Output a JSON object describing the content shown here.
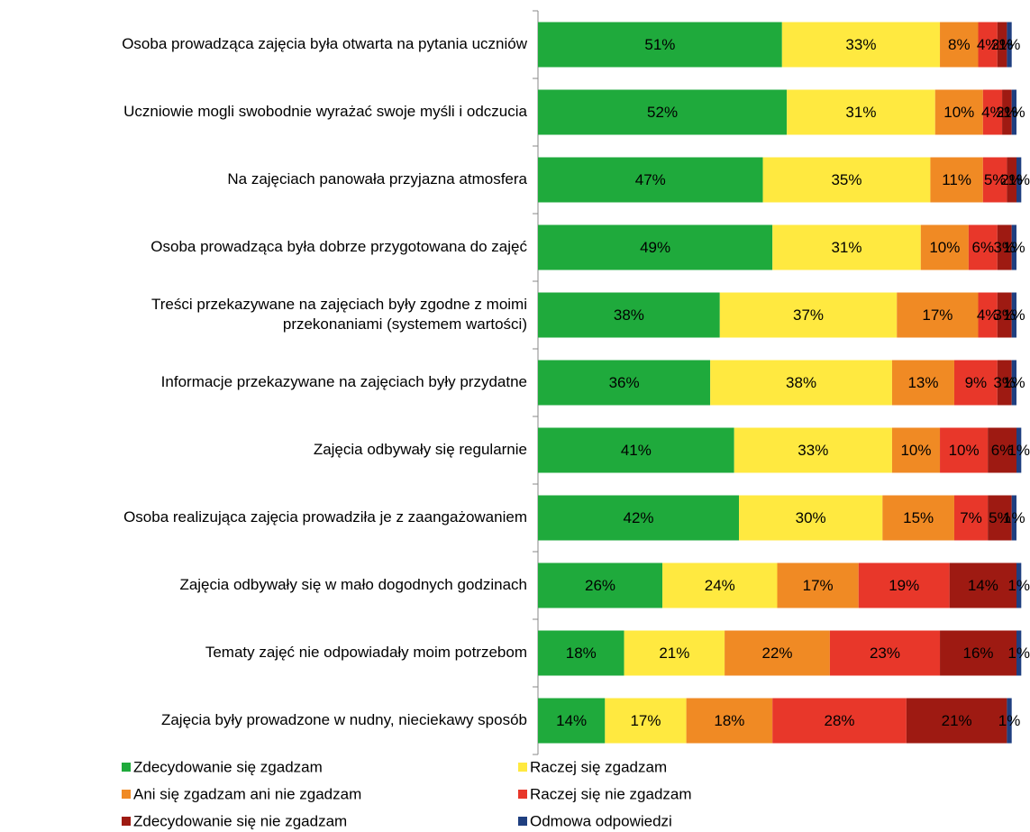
{
  "chart_data": {
    "type": "stacked_barh",
    "categories": [
      "Osoba prowadząca zajęcia była otwarta na pytania uczniów",
      "Uczniowie mogli swobodnie wyrażać swoje myśli i odczucia",
      "Na zajęciach panowała przyjazna atmosfera",
      "Osoba prowadząca była dobrze przygotowana do zajęć",
      [
        "Treści przekazywane na zajęciach były zgodne z moimi",
        "przekonaniami (systemem wartości)"
      ],
      "Informacje przekazywane na zajęciach były przydatne",
      "Zajęcia odbywały się regularnie",
      "Osoba realizująca zajęcia prowadziła je z zaangażowaniem",
      "Zajęcia odbywały się w mało dogodnych godzinach",
      "Tematy zajęć nie odpowiadały moim potrzebom",
      "Zajęcia były prowadzone w nudny, nieciekawy sposób"
    ],
    "xlim": [
      0,
      100
    ],
    "series": [
      {
        "name": "Zdecydowanie się zgadzam",
        "color": "#1faa3c",
        "values": [
          51,
          52,
          47,
          49,
          38,
          36,
          41,
          42,
          26,
          18,
          14
        ],
        "value_labels": [
          "51%",
          "52%",
          "47%",
          "49%",
          "38%",
          "36%",
          "41%",
          "42%",
          "26%",
          "18%",
          "14%"
        ]
      },
      {
        "name": "Raczej się zgadzam",
        "color": "#ffe940",
        "values": [
          33,
          31,
          35,
          31,
          37,
          38,
          33,
          30,
          24,
          21,
          17
        ],
        "value_labels": [
          "33%",
          "31%",
          "35%",
          "31%",
          "37%",
          "38%",
          "33%",
          "30%",
          "24%",
          "21%",
          "17%"
        ]
      },
      {
        "name": "Ani się zgadzam ani nie zgadzam",
        "color": "#f08a24",
        "values": [
          8,
          10,
          11,
          10,
          17,
          13,
          10,
          15,
          17,
          22,
          18
        ],
        "value_labels": [
          "8%",
          "10%",
          "11%",
          "10%",
          "17%",
          "13%",
          "10%",
          "15%",
          "17%",
          "22%",
          "18%"
        ]
      },
      {
        "name": "Raczej się nie zgadzam",
        "color": "#e8372a",
        "values": [
          4,
          4,
          5,
          6,
          4,
          9,
          10,
          7,
          19,
          23,
          28
        ],
        "value_labels": [
          "4%",
          "4%",
          "5%",
          "6%",
          "4%",
          "9%",
          "10%",
          "7%",
          "19%",
          "23%",
          "28%"
        ]
      },
      {
        "name": "Zdecydowanie się nie zgadzam",
        "color": "#9e1a12",
        "values": [
          2,
          2,
          2,
          3,
          3,
          3,
          6,
          5,
          14,
          16,
          21
        ],
        "value_labels": [
          "2%",
          "2%",
          "2%",
          "3%",
          "3%",
          "3%",
          "6%",
          "5%",
          "14%",
          "16%",
          "21%"
        ]
      },
      {
        "name": "Odmowa odpowiedzi",
        "color": "#1f3f80",
        "values": [
          1,
          1,
          1,
          1,
          1,
          1,
          1,
          1,
          1,
          1,
          1
        ],
        "value_labels": [
          "1%",
          "1%",
          "1%",
          "1%",
          "1%",
          "1%",
          "1%",
          "1%",
          "1%",
          "1%",
          "1%"
        ]
      }
    ],
    "legend": "bottom"
  }
}
